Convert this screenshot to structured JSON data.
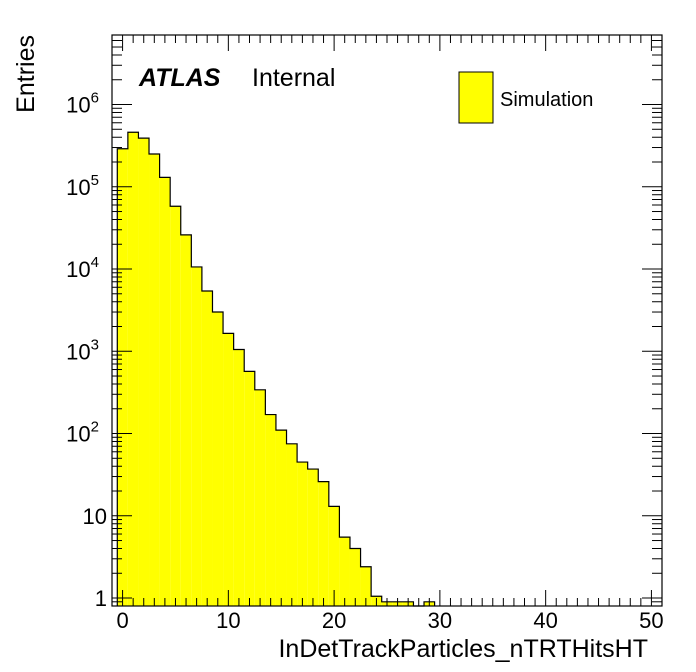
{
  "chart_data": {
    "type": "bar",
    "subtype": "histogram",
    "xlabel": "InDetTrackParticles_nTRTHitsHT",
    "ylabel": "Entries",
    "label_bold": "ATLAS",
    "label_text": "Internal",
    "legend": {
      "entries": [
        "Simulation"
      ],
      "position": "top-right"
    },
    "log_y": true,
    "xlim": [
      -1,
      51
    ],
    "ylim": [
      0.8,
      7000000
    ],
    "bin_width": 1,
    "fill_color": "#ffff00",
    "line_color": "#000000",
    "x_ticks": [
      0,
      10,
      20,
      30,
      40,
      50
    ],
    "x_tick_labels": [
      "0",
      "10",
      "20",
      "30",
      "40",
      "50"
    ],
    "y_ticks": [
      1,
      10,
      100,
      1000,
      10000,
      100000,
      1000000
    ],
    "y_tick_labels": [
      {
        "base": "1",
        "exp": ""
      },
      {
        "base": "10",
        "exp": ""
      },
      {
        "base": "10",
        "exp": "2"
      },
      {
        "base": "10",
        "exp": "3"
      },
      {
        "base": "10",
        "exp": "4"
      },
      {
        "base": "10",
        "exp": "5"
      },
      {
        "base": "10",
        "exp": "6"
      }
    ],
    "bin_edges": [
      -0.5,
      0.5,
      1.5,
      2.5,
      3.5,
      4.5,
      5.5,
      6.5,
      7.5,
      8.5,
      9.5,
      10.5,
      11.5,
      12.5,
      13.5,
      14.5,
      15.5,
      16.5,
      17.5,
      18.5,
      19.5,
      20.5,
      21.5,
      22.5,
      23.5,
      24.5,
      25.5,
      26.5,
      27.5,
      28.5,
      29.5
    ],
    "values": [
      290000,
      460000,
      390000,
      250000,
      130000,
      58000,
      26000,
      10600,
      5400,
      3000,
      1650,
      1050,
      570,
      340,
      170,
      110,
      75,
      45,
      37,
      26,
      13,
      5.5,
      4,
      2.4,
      1.05,
      0.9,
      0.9,
      0.9,
      0,
      0.9
    ]
  }
}
